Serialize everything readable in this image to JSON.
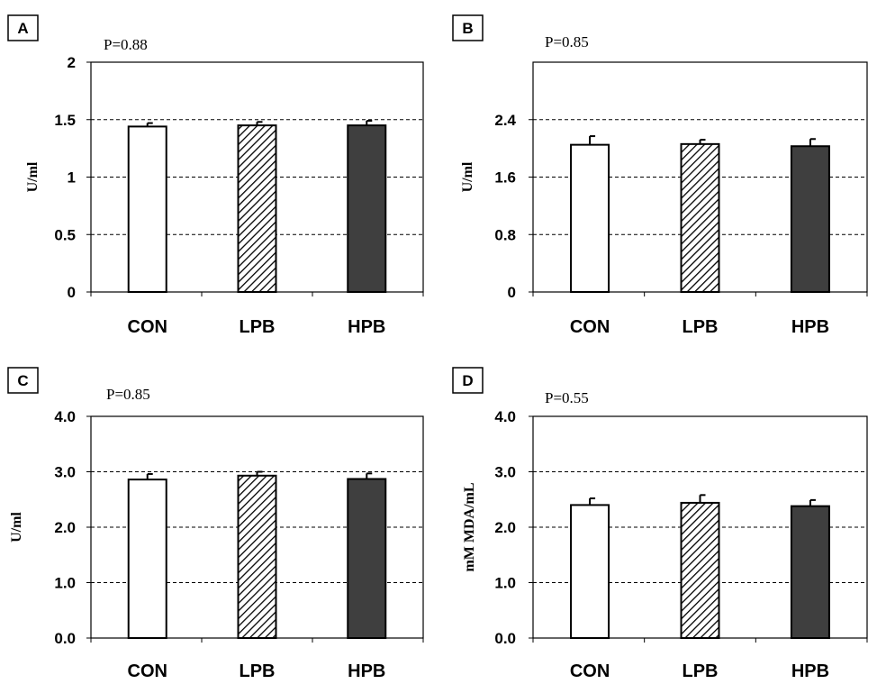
{
  "colors": {
    "con_fill": "#ffffff",
    "lpb_hatch": "#000000",
    "hpb_fill": "#3f3f3f",
    "axis": "#000000",
    "grid": "#000000"
  },
  "chart_data": [
    {
      "panel_label": "A",
      "type": "bar",
      "p_value": "P=0.88",
      "ylabel": "U/ml",
      "categories": [
        "CON",
        "LPB",
        "HPB"
      ],
      "values": [
        1.44,
        1.45,
        1.45
      ],
      "errors": [
        0.03,
        0.03,
        0.04
      ],
      "ylim": [
        0,
        2
      ],
      "yticks": [
        0,
        0.5,
        1,
        1.5,
        2
      ],
      "ytick_labels": [
        "0",
        "0.5",
        "1",
        "1.5",
        "2"
      ],
      "grid_lines": [
        0.5,
        1,
        1.5
      ],
      "grid": true
    },
    {
      "panel_label": "B",
      "type": "bar",
      "p_value": "P=0.85",
      "ylabel": "U/ml",
      "categories": [
        "CON",
        "LPB",
        "HPB"
      ],
      "values": [
        2.05,
        2.06,
        2.03
      ],
      "errors": [
        0.12,
        0.06,
        0.1
      ],
      "ylim": [
        0,
        3.2
      ],
      "yticks": [
        0,
        0.8,
        1.6,
        2.4
      ],
      "ytick_labels": [
        "0",
        "0.8",
        "1.6",
        "2.4"
      ],
      "grid_lines": [
        0.8,
        1.6,
        2.4
      ],
      "grid": true
    },
    {
      "panel_label": "C",
      "type": "bar",
      "p_value": "P=0.85",
      "ylabel": "U/ml",
      "categories": [
        "CON",
        "LPB",
        "HPB"
      ],
      "values": [
        2.86,
        2.93,
        2.87
      ],
      "errors": [
        0.1,
        0.07,
        0.1
      ],
      "ylim": [
        0,
        4
      ],
      "yticks": [
        0,
        1,
        2,
        3,
        4
      ],
      "ytick_labels": [
        "0.0",
        "1.0",
        "2.0",
        "3.0",
        "4.0"
      ],
      "grid_lines": [
        1,
        2,
        3
      ],
      "grid": true
    },
    {
      "panel_label": "D",
      "type": "bar",
      "p_value": "P=0.55",
      "ylabel": "mM MDA/mL",
      "categories": [
        "CON",
        "LPB",
        "HPB"
      ],
      "values": [
        2.4,
        2.44,
        2.38
      ],
      "errors": [
        0.12,
        0.14,
        0.11
      ],
      "ylim": [
        0,
        4
      ],
      "yticks": [
        0,
        1,
        2,
        3,
        4
      ],
      "ytick_labels": [
        "0.0",
        "1.0",
        "2.0",
        "3.0",
        "4.0"
      ],
      "grid_lines": [
        1,
        2,
        3
      ],
      "grid": true
    }
  ]
}
